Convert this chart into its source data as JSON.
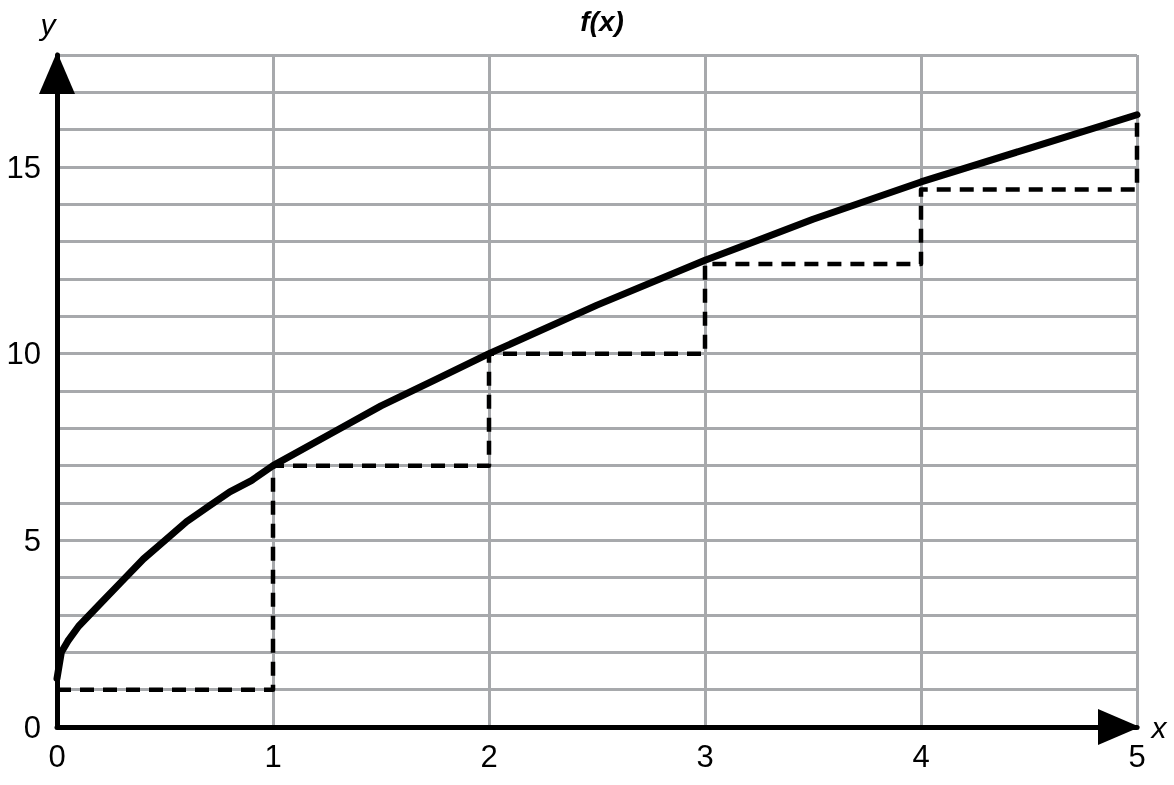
{
  "chart_data": {
    "type": "line",
    "title": "f(x)",
    "xlabel": "x",
    "ylabel": "y",
    "xlim": [
      0,
      5
    ],
    "xticks": [
      0,
      1,
      2,
      3,
      4,
      5
    ],
    "ylim": [
      0,
      18
    ],
    "yticks": [
      0,
      {
        "value": 1,
        "label": null
      },
      {
        "value": 2,
        "label": null
      },
      {
        "value": 3,
        "label": null
      },
      {
        "value": 4,
        "label": null
      },
      5,
      {
        "value": 6,
        "label": null
      },
      {
        "value": 7,
        "label": null
      },
      {
        "value": 8,
        "label": null
      },
      {
        "value": 9,
        "label": null
      },
      10,
      {
        "value": 11,
        "label": null
      },
      {
        "value": 12,
        "label": null
      },
      {
        "value": 13,
        "label": null
      },
      {
        "value": 14,
        "label": null
      },
      15,
      {
        "value": 16,
        "label": null
      },
      {
        "value": 17,
        "label": null
      },
      {
        "value": 18,
        "label": null
      }
    ],
    "grid": true,
    "marker": "none",
    "series": [
      {
        "type": "line",
        "color": "#000000",
        "line_style": "solid",
        "x": [
          0,
          0.02,
          0.05,
          0.1,
          0.15,
          0.2,
          0.3,
          0.4,
          0.5,
          0.6,
          0.7,
          0.8,
          0.9,
          1,
          1.25,
          1.5,
          1.75,
          2,
          2.5,
          3,
          3.5,
          4,
          4.5,
          5
        ],
        "values": [
          1.3,
          2.0,
          2.3,
          2.7,
          3.0,
          3.3,
          3.9,
          4.5,
          5.0,
          5.5,
          5.9,
          6.3,
          6.6,
          7.0,
          7.8,
          8.6,
          9.3,
          10.0,
          11.3,
          12.5,
          13.6,
          14.6,
          15.5,
          16.4
        ]
      },
      {
        "type": "step",
        "color": "#000000",
        "line_style": "dashed",
        "x": [
          0,
          1,
          2,
          3,
          4,
          5
        ],
        "values": [
          1,
          7,
          10,
          12.4,
          14.4,
          16.4
        ]
      }
    ]
  }
}
